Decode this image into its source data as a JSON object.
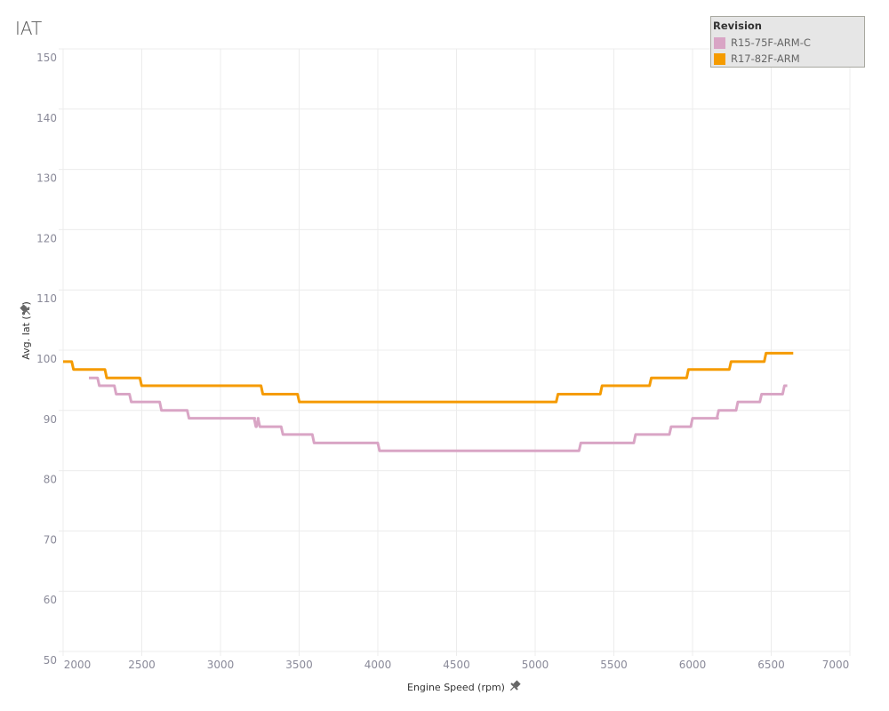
{
  "title": "IAT",
  "legend": {
    "title": "Revision",
    "items": [
      {
        "label": "R15-75F-ARM-C",
        "color": "#d9a5c5"
      },
      {
        "label": "R17-82F-ARM",
        "color": "#f59b00"
      }
    ]
  },
  "chart_data": {
    "type": "line",
    "interpolation": "step-after",
    "title": "IAT",
    "xlabel": "Engine Speed (rpm)",
    "ylabel": "Avg. Iat (°F)",
    "xlim": [
      2000,
      7000
    ],
    "ylim": [
      50,
      150
    ],
    "xticks": [
      2000,
      2500,
      3000,
      3500,
      4000,
      4500,
      5000,
      5500,
      6000,
      6500,
      7000
    ],
    "yticks": [
      50,
      60,
      70,
      80,
      90,
      100,
      110,
      120,
      130,
      140,
      150
    ],
    "grid": true,
    "legend_position": "top-right",
    "series": [
      {
        "name": "R15-75F-ARM-C",
        "color": "#d9a5c5",
        "points": [
          [
            2164,
            95.4
          ],
          [
            2230,
            94.1
          ],
          [
            2337,
            92.7
          ],
          [
            2433,
            91.4
          ],
          [
            2625,
            90.0
          ],
          [
            2800,
            88.7
          ],
          [
            3218,
            88.7
          ],
          [
            3225,
            87.3
          ],
          [
            3240,
            88.7
          ],
          [
            3250,
            87.3
          ],
          [
            3397,
            86.0
          ],
          [
            3595,
            84.6
          ],
          [
            4011,
            83.3
          ],
          [
            5290,
            84.6
          ],
          [
            5638,
            86.0
          ],
          [
            5864,
            87.3
          ],
          [
            6000,
            88.7
          ],
          [
            6160,
            88.7
          ],
          [
            6166,
            90.0
          ],
          [
            6288,
            91.4
          ],
          [
            6439,
            92.7
          ],
          [
            6584,
            94.1
          ],
          [
            6602,
            94.1
          ]
        ]
      },
      {
        "name": "R17-82F-ARM",
        "color": "#f59b00",
        "points": [
          [
            2000,
            98.1
          ],
          [
            2066,
            96.8
          ],
          [
            2277,
            95.4
          ],
          [
            2499,
            94.1
          ],
          [
            3269,
            92.7
          ],
          [
            3501,
            91.4
          ],
          [
            5145,
            92.7
          ],
          [
            5425,
            94.1
          ],
          [
            5738,
            95.4
          ],
          [
            5974,
            96.8
          ],
          [
            6245,
            98.1
          ],
          [
            6467,
            99.5
          ],
          [
            6640,
            99.5
          ]
        ]
      }
    ]
  }
}
